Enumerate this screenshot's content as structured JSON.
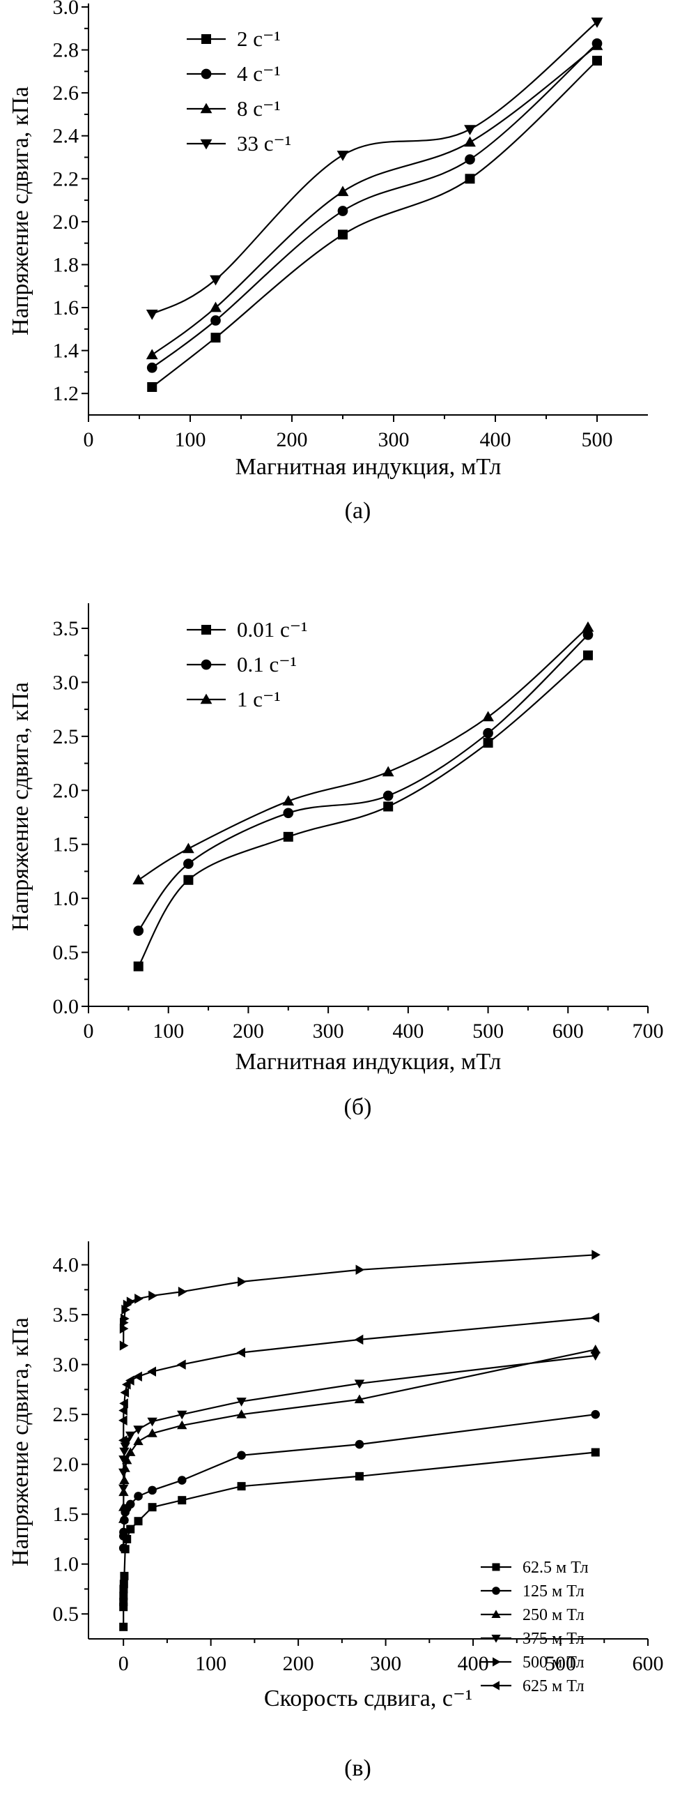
{
  "chart_data": [
    {
      "type": "line",
      "caption": "(а)",
      "xlabel": "Магнитная индукция, мТл",
      "ylabel": "Напряжение сдвига, кПа",
      "xlim": [
        0,
        550
      ],
      "ylim": [
        1.1,
        3.0
      ],
      "xticks": [
        0,
        100,
        200,
        300,
        400,
        500
      ],
      "yticks": [
        1.2,
        1.4,
        1.6,
        1.8,
        2.0,
        2.2,
        2.4,
        2.6,
        2.8,
        3.0
      ],
      "xtick_labels": [
        "0",
        "100",
        "200",
        "300",
        "400",
        "500"
      ],
      "ytick_labels": [
        "1.2",
        "1.4",
        "1.6",
        "1.8",
        "2.0",
        "2.2",
        "2.4",
        "2.6",
        "2.8",
        "3.0"
      ],
      "legend_position": "top-left",
      "x": [
        62.5,
        125,
        250,
        375,
        500
      ],
      "series": [
        {
          "name": "2 с⁻¹",
          "marker": "square",
          "values": [
            1.23,
            1.46,
            1.94,
            2.2,
            2.75
          ]
        },
        {
          "name": "4 с⁻¹",
          "marker": "circle",
          "values": [
            1.32,
            1.54,
            2.05,
            2.29,
            2.83
          ]
        },
        {
          "name": "8 с⁻¹",
          "marker": "triangle-up",
          "values": [
            1.38,
            1.6,
            2.14,
            2.37,
            2.82
          ]
        },
        {
          "name": "33 с⁻¹",
          "marker": "triangle-down",
          "values": [
            1.57,
            1.73,
            2.31,
            2.43,
            2.93
          ]
        }
      ]
    },
    {
      "type": "line",
      "caption": "(б)",
      "xlabel": "Магнитная индукция, мТл",
      "ylabel": "Напряжение сдвига, кПа",
      "xlim": [
        0,
        700
      ],
      "ylim": [
        0,
        3.7
      ],
      "xticks": [
        0,
        100,
        200,
        300,
        400,
        500,
        600,
        700
      ],
      "yticks": [
        0,
        0.5,
        1.0,
        1.5,
        2.0,
        2.5,
        3.0,
        3.5
      ],
      "xtick_labels": [
        "0",
        "100",
        "200",
        "300",
        "400",
        "500",
        "600",
        "700"
      ],
      "ytick_labels": [
        "0.0",
        "0.5",
        "1.0",
        "1.5",
        "2.0",
        "2.5",
        "3.0",
        "3.5"
      ],
      "legend_position": "top-left",
      "x": [
        62.5,
        125,
        250,
        375,
        500,
        625
      ],
      "series": [
        {
          "name": "0.01 с⁻¹",
          "marker": "square",
          "values": [
            0.37,
            1.17,
            1.57,
            1.85,
            2.44,
            3.25
          ]
        },
        {
          "name": "0.1 с⁻¹",
          "marker": "circle",
          "values": [
            0.7,
            1.32,
            1.79,
            1.95,
            2.53,
            3.44
          ]
        },
        {
          "name": "1 с⁻¹",
          "marker": "triangle-up",
          "values": [
            1.17,
            1.46,
            1.9,
            2.17,
            2.68,
            3.51
          ]
        }
      ]
    },
    {
      "type": "line",
      "caption": "(в)",
      "xlabel": "Скорость сдвига, с⁻¹",
      "ylabel": "Напряжение сдвига, кПа",
      "xlim": [
        -40,
        600
      ],
      "ylim": [
        0.25,
        4.2
      ],
      "xticks": [
        0,
        100,
        200,
        300,
        400,
        500,
        600
      ],
      "yticks": [
        0.5,
        1.0,
        1.5,
        2.0,
        2.5,
        3.0,
        3.5,
        4.0
      ],
      "xtick_labels": [
        "0",
        "100",
        "200",
        "300",
        "400",
        "500",
        "600"
      ],
      "ytick_labels": [
        "0.5",
        "1.0",
        "1.5",
        "2.0",
        "2.5",
        "3.0",
        "3.5",
        "4.0"
      ],
      "legend_position": "bottom-right",
      "series": [
        {
          "name": "62.5 м Тл",
          "marker": "square",
          "x": [
            0.01,
            0.02,
            0.05,
            0.1,
            0.2,
            0.5,
            1,
            2,
            4,
            8,
            17,
            33,
            67,
            135,
            270,
            540
          ],
          "values": [
            0.37,
            0.57,
            0.62,
            0.68,
            0.75,
            0.8,
            0.88,
            1.15,
            1.25,
            1.35,
            1.43,
            1.57,
            1.64,
            1.78,
            1.88,
            2.12
          ]
        },
        {
          "name": "125 м Тл",
          "marker": "circle",
          "x": [
            0.01,
            0.05,
            0.2,
            1,
            2,
            4,
            8,
            17,
            33,
            67,
            135,
            270,
            540
          ],
          "values": [
            1.16,
            1.28,
            1.32,
            1.44,
            1.52,
            1.56,
            1.6,
            1.68,
            1.74,
            1.84,
            2.09,
            2.2,
            2.5
          ]
        },
        {
          "name": "250 м Тл",
          "marker": "triangle-up",
          "x": [
            0.01,
            0.05,
            0.2,
            1,
            2,
            4,
            8,
            17,
            33,
            67,
            135,
            270,
            540
          ],
          "values": [
            1.45,
            1.57,
            1.72,
            1.84,
            1.96,
            2.04,
            2.12,
            2.23,
            2.31,
            2.39,
            2.5,
            2.65,
            3.15
          ]
        },
        {
          "name": "375 м Тл",
          "marker": "triangle-down",
          "x": [
            0.01,
            0.05,
            0.2,
            1,
            2,
            4,
            8,
            17,
            33,
            67,
            135,
            270,
            540
          ],
          "values": [
            1.76,
            1.92,
            2.05,
            2.13,
            2.18,
            2.23,
            2.29,
            2.35,
            2.43,
            2.5,
            2.63,
            2.81,
            3.09
          ]
        },
        {
          "name": "500 м Тл",
          "marker": "triangle-right",
          "x": [
            0.01,
            0.05,
            0.2,
            1,
            2,
            4,
            8,
            17,
            33,
            67,
            135,
            270,
            540
          ],
          "values": [
            3.19,
            3.36,
            3.42,
            3.46,
            3.55,
            3.6,
            3.63,
            3.66,
            3.69,
            3.73,
            3.83,
            3.95,
            4.1
          ]
        },
        {
          "name": "625 м Тл",
          "marker": "triangle-left",
          "x": [
            0.01,
            0.05,
            0.2,
            1,
            2,
            4,
            8,
            17,
            33,
            67,
            135,
            270,
            540
          ],
          "values": [
            2.24,
            2.44,
            2.54,
            2.61,
            2.72,
            2.8,
            2.84,
            2.88,
            2.93,
            3.0,
            3.12,
            3.25,
            3.47
          ]
        }
      ]
    }
  ]
}
